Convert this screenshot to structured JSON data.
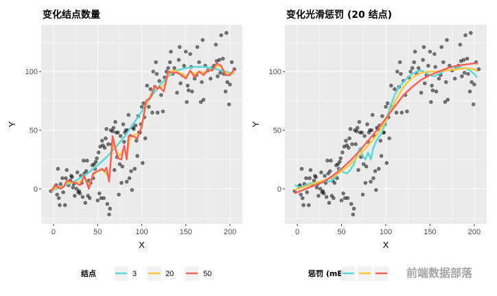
{
  "chart_data": [
    {
      "type": "line",
      "title": "变化结点数量",
      "xlabel": "X",
      "ylabel": "Y",
      "xlim": [
        -14,
        214
      ],
      "ylim": [
        -30,
        140
      ],
      "xticks": [
        0,
        50,
        100,
        150,
        200
      ],
      "yticks": [
        0,
        50,
        100
      ],
      "grid": true,
      "legend": {
        "title": "结点",
        "position": "bottom",
        "entries": [
          "3",
          "20",
          "50"
        ]
      },
      "series": [
        {
          "name": "3",
          "color": "#5bd6d6",
          "points": [
            [
              -3,
              -2
            ],
            [
              10,
              2
            ],
            [
              20,
              5
            ],
            [
              30,
              9
            ],
            [
              40,
              14
            ],
            [
              50,
              20
            ],
            [
              60,
              27
            ],
            [
              70,
              35
            ],
            [
              80,
              44
            ],
            [
              90,
              55
            ],
            [
              100,
              66
            ],
            [
              110,
              78
            ],
            [
              120,
              88
            ],
            [
              130,
              96
            ],
            [
              140,
              101
            ],
            [
              150,
              103
            ],
            [
              160,
              104
            ],
            [
              170,
              104
            ],
            [
              180,
              103
            ],
            [
              190,
              101
            ],
            [
              200,
              99
            ],
            [
              205,
              98
            ]
          ]
        },
        {
          "name": "20",
          "color": "#f5c842",
          "points": [
            [
              -3,
              -2
            ],
            [
              5,
              2
            ],
            [
              10,
              1
            ],
            [
              15,
              5
            ],
            [
              20,
              5
            ],
            [
              30,
              6
            ],
            [
              35,
              9
            ],
            [
              40,
              3
            ],
            [
              45,
              12
            ],
            [
              50,
              15
            ],
            [
              55,
              16
            ],
            [
              60,
              13
            ],
            [
              63,
              9
            ],
            [
              67,
              40
            ],
            [
              70,
              33
            ],
            [
              75,
              28
            ],
            [
              80,
              35
            ],
            [
              83,
              29
            ],
            [
              87,
              44
            ],
            [
              92,
              46
            ],
            [
              97,
              47
            ],
            [
              100,
              54
            ],
            [
              105,
              72
            ],
            [
              110,
              80
            ],
            [
              115,
              86
            ],
            [
              120,
              86
            ],
            [
              125,
              88
            ],
            [
              130,
              97
            ],
            [
              135,
              101
            ],
            [
              140,
              100
            ],
            [
              145,
              98
            ],
            [
              150,
              96
            ],
            [
              155,
              100
            ],
            [
              160,
              98
            ],
            [
              165,
              100
            ],
            [
              170,
              99
            ],
            [
              175,
              101
            ],
            [
              180,
              101
            ],
            [
              185,
              105
            ],
            [
              190,
              104
            ],
            [
              195,
              99
            ],
            [
              200,
              98
            ],
            [
              205,
              99
            ]
          ]
        },
        {
          "name": "50",
          "color": "#f0635a",
          "points": [
            [
              -3,
              -2
            ],
            [
              2,
              3
            ],
            [
              8,
              0
            ],
            [
              12,
              2
            ],
            [
              15,
              7
            ],
            [
              20,
              6
            ],
            [
              25,
              5
            ],
            [
              30,
              3
            ],
            [
              35,
              11
            ],
            [
              40,
              0
            ],
            [
              45,
              13
            ],
            [
              50,
              15
            ],
            [
              55,
              17
            ],
            [
              58,
              15
            ],
            [
              60,
              18
            ],
            [
              63,
              6
            ],
            [
              67,
              45
            ],
            [
              70,
              35
            ],
            [
              73,
              26
            ],
            [
              77,
              25
            ],
            [
              80,
              37
            ],
            [
              83,
              25
            ],
            [
              85,
              45
            ],
            [
              90,
              45
            ],
            [
              95,
              43
            ],
            [
              100,
              53
            ],
            [
              105,
              75
            ],
            [
              110,
              78
            ],
            [
              115,
              88
            ],
            [
              118,
              85
            ],
            [
              120,
              87
            ],
            [
              125,
              83
            ],
            [
              130,
              100
            ],
            [
              135,
              99
            ],
            [
              140,
              99
            ],
            [
              145,
              97
            ],
            [
              150,
              94
            ],
            [
              155,
              101
            ],
            [
              160,
              95
            ],
            [
              165,
              100
            ],
            [
              170,
              97
            ],
            [
              175,
              101
            ],
            [
              180,
              101
            ],
            [
              185,
              107
            ],
            [
              190,
              105
            ],
            [
              195,
              97
            ],
            [
              200,
              97
            ],
            [
              205,
              102
            ]
          ]
        }
      ]
    },
    {
      "type": "line",
      "title": "变化光滑惩罚 (20 结点)",
      "xlabel": "X",
      "ylabel": "Y",
      "xlim": [
        -14,
        214
      ],
      "ylim": [
        -30,
        140
      ],
      "xticks": [
        0,
        50,
        100,
        150,
        200
      ],
      "yticks": [
        0,
        50,
        100
      ],
      "grid": true,
      "legend": {
        "title": "惩罚 (mE)",
        "position": "bottom",
        "entries": []
      },
      "series": [
        {
          "color": "#5bd6d6",
          "points": [
            [
              -3,
              3
            ],
            [
              5,
              1
            ],
            [
              12,
              4
            ],
            [
              18,
              5
            ],
            [
              25,
              4
            ],
            [
              32,
              7
            ],
            [
              38,
              6
            ],
            [
              44,
              11
            ],
            [
              48,
              17
            ],
            [
              52,
              14
            ],
            [
              56,
              13
            ],
            [
              60,
              16
            ],
            [
              64,
              21
            ],
            [
              68,
              30
            ],
            [
              71,
              35
            ],
            [
              74,
              28
            ],
            [
              77,
              25
            ],
            [
              80,
              31
            ],
            [
              83,
              25
            ],
            [
              86,
              35
            ],
            [
              90,
              42
            ],
            [
              95,
              47
            ],
            [
              100,
              57
            ],
            [
              105,
              70
            ],
            [
              110,
              80
            ],
            [
              115,
              87
            ],
            [
              120,
              91
            ],
            [
              125,
              95
            ],
            [
              130,
              98
            ],
            [
              135,
              100
            ],
            [
              140,
              101
            ],
            [
              145,
              99
            ],
            [
              150,
              97
            ],
            [
              155,
              96
            ],
            [
              160,
              98
            ],
            [
              165,
              100
            ],
            [
              170,
              103
            ],
            [
              175,
              104
            ],
            [
              180,
              104
            ],
            [
              185,
              103
            ],
            [
              190,
              103
            ],
            [
              195,
              101
            ],
            [
              200,
              98
            ],
            [
              203,
              95
            ]
          ]
        },
        {
          "color": "#f5c842",
          "points": [
            [
              -3,
              -1
            ],
            [
              10,
              2
            ],
            [
              20,
              5
            ],
            [
              30,
              7
            ],
            [
              40,
              10
            ],
            [
              50,
              15
            ],
            [
              60,
              21
            ],
            [
              70,
              29
            ],
            [
              80,
              37
            ],
            [
              90,
              46
            ],
            [
              100,
              58
            ],
            [
              110,
              74
            ],
            [
              120,
              87
            ],
            [
              130,
              95
            ],
            [
              140,
              99
            ],
            [
              150,
              100
            ],
            [
              160,
              100
            ],
            [
              170,
              101
            ],
            [
              180,
              102
            ],
            [
              190,
              103
            ],
            [
              200,
              102
            ],
            [
              204,
              100
            ]
          ]
        },
        {
          "color": "#f0635a",
          "points": [
            [
              -3,
              -4
            ],
            [
              10,
              0
            ],
            [
              20,
              3
            ],
            [
              30,
              6
            ],
            [
              40,
              11
            ],
            [
              50,
              17
            ],
            [
              60,
              24
            ],
            [
              70,
              32
            ],
            [
              80,
              41
            ],
            [
              90,
              50
            ],
            [
              100,
              60
            ],
            [
              110,
              70
            ],
            [
              120,
              80
            ],
            [
              130,
              87
            ],
            [
              140,
              93
            ],
            [
              150,
              97
            ],
            [
              160,
              100
            ],
            [
              170,
              103
            ],
            [
              180,
              105
            ],
            [
              190,
              106
            ],
            [
              200,
              107
            ],
            [
              204,
              107
            ]
          ]
        }
      ]
    }
  ],
  "points": [
    [
      -3,
      -2
    ],
    [
      2,
      2
    ],
    [
      3,
      3
    ],
    [
      4,
      -5
    ],
    [
      5,
      17
    ],
    [
      6,
      -8
    ],
    [
      7,
      -14
    ],
    [
      8,
      4
    ],
    [
      10,
      9
    ],
    [
      11,
      -3
    ],
    [
      13,
      -14
    ],
    [
      14,
      9
    ],
    [
      15,
      16
    ],
    [
      17,
      3
    ],
    [
      19,
      7
    ],
    [
      20,
      11
    ],
    [
      21,
      10
    ],
    [
      22,
      1
    ],
    [
      23,
      4
    ],
    [
      24,
      -6
    ],
    [
      26,
      0
    ],
    [
      27,
      14
    ],
    [
      28,
      -3
    ],
    [
      29,
      -2
    ],
    [
      30,
      -4
    ],
    [
      31,
      11
    ],
    [
      32,
      5
    ],
    [
      33,
      -7
    ],
    [
      34,
      24
    ],
    [
      35,
      13
    ],
    [
      36,
      -12
    ],
    [
      37,
      15
    ],
    [
      38,
      24
    ],
    [
      39,
      -6
    ],
    [
      40,
      7
    ],
    [
      41,
      -8
    ],
    [
      42,
      5
    ],
    [
      44,
      20
    ],
    [
      45,
      9
    ],
    [
      46,
      21
    ],
    [
      47,
      17
    ],
    [
      48,
      23
    ],
    [
      49,
      26
    ],
    [
      50,
      -10
    ],
    [
      51,
      31
    ],
    [
      52,
      -4
    ],
    [
      53,
      36
    ],
    [
      54,
      -8
    ],
    [
      55,
      41
    ],
    [
      56,
      37
    ],
    [
      57,
      -8
    ],
    [
      58,
      35
    ],
    [
      59,
      43
    ],
    [
      60,
      51
    ],
    [
      61,
      -13
    ],
    [
      62,
      38
    ],
    [
      63,
      -22
    ],
    [
      64,
      -17
    ],
    [
      65,
      50
    ],
    [
      66,
      38
    ],
    [
      67,
      49
    ],
    [
      68,
      52
    ],
    [
      69,
      16
    ],
    [
      70,
      57
    ],
    [
      71,
      48
    ],
    [
      72,
      27
    ],
    [
      73,
      48
    ],
    [
      74,
      -5
    ],
    [
      75,
      21
    ],
    [
      76,
      45
    ],
    [
      77,
      5
    ],
    [
      78,
      19
    ],
    [
      79,
      55
    ],
    [
      80,
      40
    ],
    [
      81,
      48
    ],
    [
      82,
      50
    ],
    [
      83,
      6
    ],
    [
      84,
      50
    ],
    [
      85,
      63
    ],
    [
      86,
      9
    ],
    [
      87,
      45
    ],
    [
      88,
      15
    ],
    [
      89,
      -1
    ],
    [
      90,
      52
    ],
    [
      91,
      51
    ],
    [
      92,
      17
    ],
    [
      93,
      54
    ],
    [
      94,
      41
    ],
    [
      95,
      28
    ],
    [
      96,
      62
    ],
    [
      97,
      48
    ],
    [
      98,
      48
    ],
    [
      99,
      55
    ],
    [
      100,
      70
    ],
    [
      101,
      22
    ],
    [
      102,
      73
    ],
    [
      103,
      61
    ],
    [
      104,
      43
    ],
    [
      106,
      88
    ],
    [
      108,
      70
    ],
    [
      110,
      85
    ],
    [
      112,
      65
    ],
    [
      113,
      100
    ],
    [
      115,
      87
    ],
    [
      116,
      108
    ],
    [
      117,
      98
    ],
    [
      118,
      65
    ],
    [
      120,
      92
    ],
    [
      122,
      80
    ],
    [
      124,
      66
    ],
    [
      126,
      95
    ],
    [
      128,
      100
    ],
    [
      130,
      103
    ],
    [
      132,
      108
    ],
    [
      133,
      117
    ],
    [
      135,
      98
    ],
    [
      137,
      103
    ],
    [
      140,
      82
    ],
    [
      142,
      110
    ],
    [
      143,
      121
    ],
    [
      144,
      90
    ],
    [
      146,
      97
    ],
    [
      148,
      105
    ],
    [
      150,
      117
    ],
    [
      151,
      74
    ],
    [
      152,
      88
    ],
    [
      153,
      84
    ],
    [
      155,
      115
    ],
    [
      156,
      104
    ],
    [
      157,
      83
    ],
    [
      160,
      94
    ],
    [
      162,
      97
    ],
    [
      163,
      121
    ],
    [
      165,
      108
    ],
    [
      167,
      74
    ],
    [
      168,
      91
    ],
    [
      169,
      127
    ],
    [
      170,
      76
    ],
    [
      172,
      105
    ],
    [
      175,
      101
    ],
    [
      178,
      94
    ],
    [
      180,
      103
    ],
    [
      182,
      105
    ],
    [
      184,
      123
    ],
    [
      185,
      109
    ],
    [
      186,
      96
    ],
    [
      188,
      110
    ],
    [
      189,
      99
    ],
    [
      190,
      131
    ],
    [
      192,
      111
    ],
    [
      193,
      98
    ],
    [
      195,
      83
    ],
    [
      196,
      133
    ],
    [
      197,
      91
    ],
    [
      199,
      72
    ],
    [
      200,
      89
    ],
    [
      202,
      108
    ],
    [
      205,
      102
    ]
  ],
  "watermark": "前端数据部落"
}
